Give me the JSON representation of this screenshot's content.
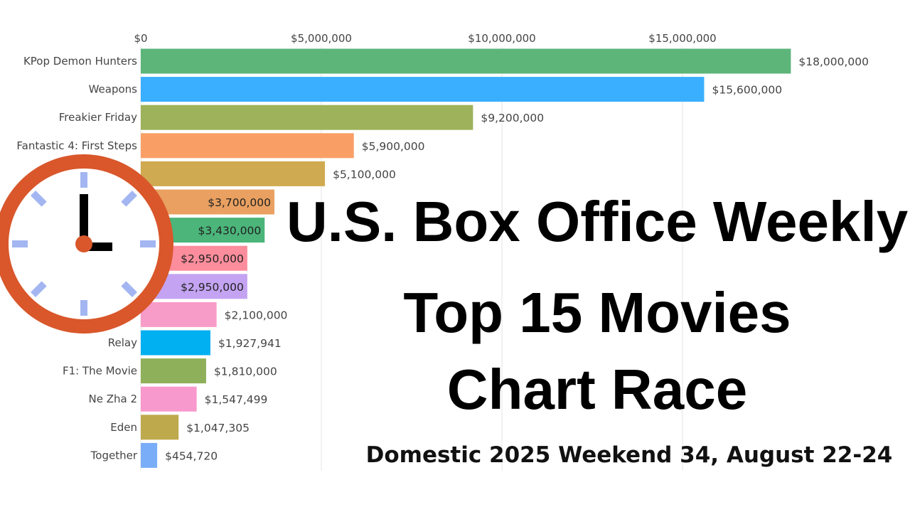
{
  "chart_data": {
    "type": "bar",
    "orientation": "horizontal",
    "title": "U.S. Box Office Weekly Top 15 Movies Chart Race",
    "title_lines": [
      "U.S. Box Office Weekly",
      "Top 15 Movies",
      "Chart Race"
    ],
    "subtitle": "Domestic 2025 Weekend 34, August 22-24",
    "xlim": [
      0,
      18000000
    ],
    "x_ticks": [
      0,
      5000000,
      10000000,
      15000000
    ],
    "x_tick_labels": [
      "$0",
      "$5,000,000",
      "$10,000,000",
      "$15,000,000"
    ],
    "grid": true,
    "categories": [
      "KPop Demon Hunters",
      "Weapons",
      "Freakier Friday",
      "Fantastic 4: First Steps",
      "",
      "",
      "",
      "",
      "",
      "",
      "Relay",
      "F1: The Movie",
      "Ne Zha 2",
      "Eden",
      "Together"
    ],
    "values": [
      18000000,
      15600000,
      9200000,
      5900000,
      5100000,
      3700000,
      3430000,
      2950000,
      2950000,
      2100000,
      1927941,
      1810000,
      1547499,
      1047305,
      454720
    ],
    "value_labels": [
      "$18,000,000",
      "$15,600,000",
      "$9,200,000",
      "$5,900,000",
      "$5,100,000",
      "$3,700,000",
      "$3,430,000",
      "$2,950,000",
      "$2,950,000",
      "$2,100,000",
      "$1,927,941",
      "$1,810,000",
      "$1,547,499",
      "$1,047,305",
      "$454,720"
    ],
    "colors": [
      "#5db57a",
      "#3aafff",
      "#9db25a",
      "#f99f66",
      "#d0aa50",
      "#e9a060",
      "#4bb57a",
      "#fc8d9c",
      "#c3a3f2",
      "#f79cc8",
      "#00b0f0",
      "#8fb05a",
      "#f799cc",
      "#bea94d",
      "#79adf8"
    ]
  },
  "overlay": {
    "icon": "clock-icon",
    "clock_color": "#d9572b",
    "tick_color": "#a3b6f2"
  }
}
